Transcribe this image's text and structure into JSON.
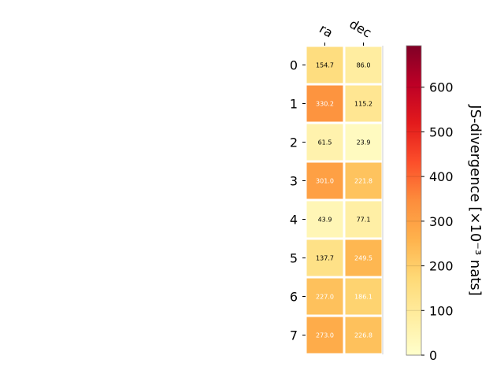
{
  "chart_data": {
    "type": "heatmap",
    "columns": [
      "ra",
      "dec"
    ],
    "rows": [
      "0",
      "1",
      "2",
      "3",
      "4",
      "5",
      "6",
      "7"
    ],
    "values": [
      [
        154.7,
        86.0
      ],
      [
        330.2,
        115.2
      ],
      [
        61.5,
        23.9
      ],
      [
        301.0,
        221.8
      ],
      [
        43.9,
        77.1
      ],
      [
        137.7,
        249.5
      ],
      [
        227.0,
        186.1
      ],
      [
        273.0,
        226.8
      ]
    ],
    "value_labels": [
      [
        "154.7",
        "86.0"
      ],
      [
        "330.2",
        "115.2"
      ],
      [
        "61.5",
        "23.9"
      ],
      [
        "301.0",
        "221.8"
      ],
      [
        "43.9",
        "77.1"
      ],
      [
        "137.7",
        "249.5"
      ],
      [
        "227.0",
        "186.1"
      ],
      [
        "273.0",
        "226.8"
      ]
    ],
    "colorbar": {
      "label": "JS-divergence [×10⁻³ nats]",
      "range": [
        0,
        693
      ],
      "ticks": [
        "0",
        "100",
        "200",
        "300",
        "400",
        "500",
        "600"
      ],
      "tick_values": [
        0,
        100,
        200,
        300,
        400,
        500,
        600
      ],
      "colormap": "YlOrRd"
    },
    "label_color_threshold": 180,
    "grid": false,
    "legend": "colorbar-right"
  }
}
